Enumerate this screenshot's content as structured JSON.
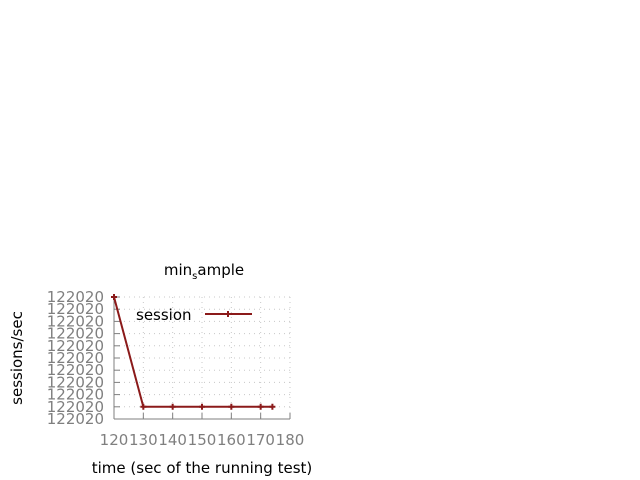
{
  "chart_data": {
    "type": "line",
    "title_main": "min",
    "title_sub": "s",
    "title_rest": "ample",
    "xlabel": "time (sec of the running test)",
    "ylabel": "sessions/sec",
    "xlim": [
      120,
      180
    ],
    "x_ticks": [
      "120",
      "130",
      "140",
      "150",
      "160",
      "170",
      "180"
    ],
    "y_ticks": [
      "122020",
      "122020",
      "122020",
      "122020",
      "122020",
      "122020",
      "122020",
      "122020",
      "122020",
      "122020",
      "122020"
    ],
    "grid": true,
    "legend_position": "top-right",
    "series": [
      {
        "name": "session",
        "color": "#8b1a1a",
        "x": [
          120,
          130,
          140,
          150,
          160,
          170,
          174
        ],
        "y": [
          122020.2,
          122019.3,
          122019.3,
          122019.3,
          122019.3,
          122019.3,
          122019.3
        ]
      }
    ],
    "ylim": [
      122019.2,
      122020.2
    ]
  }
}
